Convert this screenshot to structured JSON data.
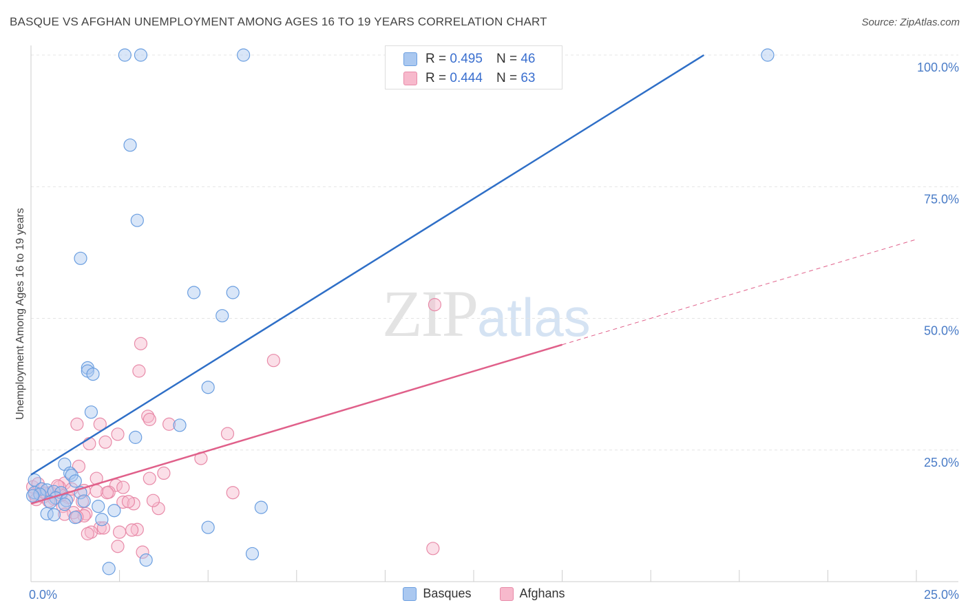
{
  "header": {
    "title": "BASQUE VS AFGHAN UNEMPLOYMENT AMONG AGES 16 TO 19 YEARS CORRELATION CHART",
    "source": "Source: ZipAtlas.com"
  },
  "watermark": {
    "zip": "ZIP",
    "atlas": "atlas"
  },
  "colors": {
    "basques_fill": "#aac8f0",
    "basques_stroke": "#6a9ee0",
    "basques_line": "#2f6fc7",
    "afghans_fill": "#f7b9cc",
    "afghans_stroke": "#e88aa8",
    "afghans_line": "#e0608a",
    "tick_label": "#4a7cc7",
    "grid": "#e4e4e4"
  },
  "stat_legend": {
    "basques": {
      "r_label": "R = ",
      "r_value": "0.495",
      "n_label": "N = ",
      "n_value": "46"
    },
    "afghans": {
      "r_label": "R = ",
      "r_value": "0.444",
      "n_label": "N = ",
      "n_value": "63"
    }
  },
  "chart_data": {
    "type": "scatter",
    "xlabel": "",
    "ylabel": "Unemployment Among Ages 16 to 19 years",
    "xlim": [
      0,
      25
    ],
    "ylim": [
      0,
      100
    ],
    "x_tick_labels": [
      {
        "value": 0,
        "label": "0.0%"
      },
      {
        "value": 25,
        "label": "25.0%"
      }
    ],
    "y_tick_labels": [
      {
        "value": 25,
        "label": "25.0%"
      },
      {
        "value": 50,
        "label": "50.0%"
      },
      {
        "value": 75,
        "label": "75.0%"
      },
      {
        "value": 100,
        "label": "100.0%"
      }
    ],
    "grid": true,
    "legend": "bottom-center",
    "series": [
      {
        "name": "Basques",
        "points": [
          [
            2.65,
            100
          ],
          [
            3.1,
            100
          ],
          [
            6.0,
            100
          ],
          [
            20.8,
            100
          ],
          [
            2.8,
            82.9
          ],
          [
            3.0,
            68.6
          ],
          [
            1.4,
            61.4
          ],
          [
            4.6,
            54.9
          ],
          [
            5.7,
            54.9
          ],
          [
            5.4,
            50.5
          ],
          [
            1.6,
            40.6
          ],
          [
            1.6,
            40.0
          ],
          [
            1.75,
            39.4
          ],
          [
            5.0,
            36.9
          ],
          [
            1.7,
            32.2
          ],
          [
            4.2,
            29.7
          ],
          [
            2.95,
            27.4
          ],
          [
            0.95,
            22.3
          ],
          [
            1.1,
            20.6
          ],
          [
            1.15,
            20.2
          ],
          [
            1.25,
            19.1
          ],
          [
            0.1,
            19.3
          ],
          [
            0.3,
            17.6
          ],
          [
            0.45,
            17.4
          ],
          [
            0.65,
            17.1
          ],
          [
            0.85,
            16.9
          ],
          [
            1.4,
            16.9
          ],
          [
            0.1,
            16.9
          ],
          [
            0.25,
            16.6
          ],
          [
            0.05,
            16.3
          ],
          [
            0.7,
            15.9
          ],
          [
            1.0,
            15.4
          ],
          [
            1.5,
            15.3
          ],
          [
            0.55,
            15.1
          ],
          [
            0.95,
            14.7
          ],
          [
            1.9,
            14.3
          ],
          [
            6.5,
            14.1
          ],
          [
            2.35,
            13.5
          ],
          [
            0.45,
            12.9
          ],
          [
            0.65,
            12.7
          ],
          [
            1.25,
            12.2
          ],
          [
            2.0,
            11.8
          ],
          [
            5.0,
            10.3
          ],
          [
            6.25,
            5.3
          ],
          [
            2.2,
            2.5
          ],
          [
            3.25,
            4.1
          ]
        ]
      },
      {
        "name": "Afghans",
        "points": [
          [
            11.4,
            52.6
          ],
          [
            3.1,
            45.2
          ],
          [
            6.85,
            42.0
          ],
          [
            3.05,
            40.0
          ],
          [
            3.3,
            31.4
          ],
          [
            1.3,
            29.9
          ],
          [
            1.95,
            29.9
          ],
          [
            3.35,
            30.8
          ],
          [
            3.9,
            29.9
          ],
          [
            5.55,
            28.1
          ],
          [
            2.45,
            28.0
          ],
          [
            2.1,
            26.5
          ],
          [
            1.65,
            26.2
          ],
          [
            4.8,
            23.4
          ],
          [
            1.35,
            21.9
          ],
          [
            3.75,
            20.6
          ],
          [
            1.85,
            19.6
          ],
          [
            3.35,
            19.6
          ],
          [
            0.95,
            18.7
          ],
          [
            2.4,
            18.3
          ],
          [
            0.8,
            18.0
          ],
          [
            2.6,
            17.9
          ],
          [
            0.3,
            17.6
          ],
          [
            1.5,
            17.3
          ],
          [
            2.2,
            17.0
          ],
          [
            0.55,
            16.9
          ],
          [
            2.15,
            16.9
          ],
          [
            5.7,
            16.9
          ],
          [
            0.1,
            16.6
          ],
          [
            0.85,
            16.4
          ],
          [
            0.35,
            16.1
          ],
          [
            1.05,
            16.0
          ],
          [
            0.65,
            15.7
          ],
          [
            0.15,
            15.6
          ],
          [
            0.5,
            15.3
          ],
          [
            1.45,
            15.2
          ],
          [
            2.6,
            15.1
          ],
          [
            2.9,
            14.8
          ],
          [
            0.9,
            14.3
          ],
          [
            3.6,
            13.9
          ],
          [
            1.2,
            13.1
          ],
          [
            1.55,
            12.9
          ],
          [
            0.95,
            12.8
          ],
          [
            1.5,
            12.5
          ],
          [
            1.3,
            12.3
          ],
          [
            1.95,
            10.2
          ],
          [
            2.05,
            10.2
          ],
          [
            3.0,
            9.9
          ],
          [
            2.5,
            9.4
          ],
          [
            1.7,
            9.4
          ],
          [
            2.85,
            9.8
          ],
          [
            1.6,
            9.1
          ],
          [
            2.45,
            6.7
          ],
          [
            3.15,
            5.6
          ],
          [
            11.35,
            6.3
          ],
          [
            0.05,
            18.0
          ],
          [
            0.2,
            18.6
          ],
          [
            0.75,
            18.2
          ],
          [
            1.15,
            17.6
          ],
          [
            1.85,
            17.2
          ],
          [
            2.75,
            15.2
          ],
          [
            3.45,
            15.4
          ],
          [
            0.4,
            16.8
          ]
        ]
      }
    ],
    "trend_lines": [
      {
        "series": "Basques",
        "style": "solid",
        "from": [
          0,
          20.3
        ],
        "to": [
          19.0,
          100
        ]
      },
      {
        "series": "Afghans",
        "style": "solid",
        "from": [
          0,
          14.8
        ],
        "to": [
          15.0,
          45.0
        ]
      },
      {
        "series": "Afghans",
        "style": "dashed",
        "from": [
          15.0,
          45.0
        ],
        "to": [
          25.0,
          65.0
        ]
      }
    ]
  }
}
